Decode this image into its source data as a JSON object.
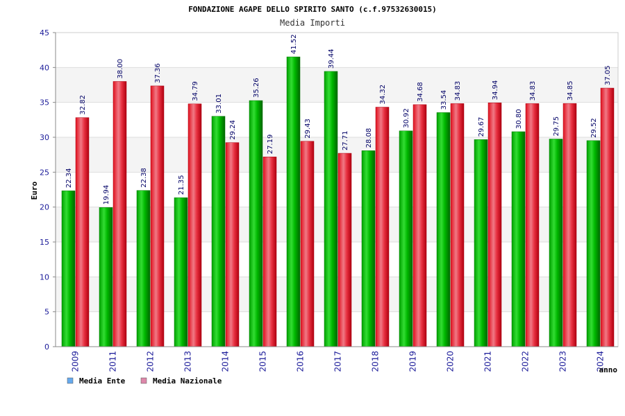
{
  "chart_data": {
    "type": "bar",
    "title": "FONDAZIONE AGAPE DELLO SPIRITO SANTO (c.f.97532630015)",
    "subtitle": "Media Importi",
    "xlabel": "anno",
    "ylabel": "Euro",
    "ylim": [
      0,
      45
    ],
    "yticks": [
      "0",
      "5",
      "10",
      "15",
      "20",
      "25",
      "30",
      "35",
      "40",
      "45"
    ],
    "grid": true,
    "legend_position": "bottom-left",
    "categories": [
      "2009",
      "2011",
      "2012",
      "2013",
      "2014",
      "2015",
      "2016",
      "2017",
      "2018",
      "2019",
      "2020",
      "2021",
      "2022",
      "2023",
      "2024"
    ],
    "series": [
      {
        "name": "Media Ente",
        "color": "#00bb00",
        "legend_color": "#66aaee",
        "values": [
          22.34,
          19.94,
          22.38,
          21.35,
          33.01,
          35.26,
          41.52,
          39.44,
          28.08,
          30.92,
          33.54,
          29.67,
          30.8,
          29.75,
          29.52
        ],
        "labels": [
          "22.34",
          "19.94",
          "22.38",
          "21.35",
          "33.01",
          "35.26",
          "41.52",
          "39.44",
          "28.08",
          "30.92",
          "33.54",
          "29.67",
          "30.80",
          "29.75",
          "29.52"
        ]
      },
      {
        "name": "Media Nazionale",
        "color": "#ee2233",
        "legend_color": "#dd88aa",
        "values": [
          32.82,
          38.0,
          37.36,
          34.79,
          29.24,
          27.19,
          29.43,
          27.71,
          34.32,
          34.68,
          34.83,
          34.94,
          34.83,
          34.85,
          37.05
        ],
        "labels": [
          "32.82",
          "38.00",
          "37.36",
          "34.79",
          "29.24",
          "27.19",
          "29.43",
          "27.71",
          "34.32",
          "34.68",
          "34.83",
          "34.94",
          "34.83",
          "34.85",
          "37.05"
        ]
      }
    ]
  }
}
